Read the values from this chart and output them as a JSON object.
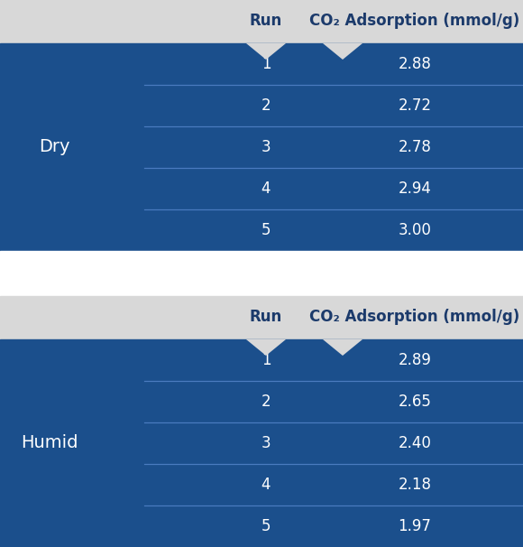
{
  "dry_runs": [
    1,
    2,
    3,
    4,
    5
  ],
  "dry_values": [
    "2.88",
    "2.72",
    "2.78",
    "2.94",
    "3.00"
  ],
  "humid_runs": [
    1,
    2,
    3,
    4,
    5
  ],
  "humid_values": [
    "2.89",
    "2.65",
    "2.40",
    "2.18",
    "1.97"
  ],
  "dry_label": "Dry",
  "humid_label": "Humid",
  "col1_header": "Run",
  "col2_header": "CO₂ Adsorption (mmol/g)",
  "bg_color": "#1b4f8c",
  "header_bg": "#d8d8d8",
  "text_color_white": "#ffffff",
  "text_color_dark": "#1b3a6b",
  "divider_color": "#4a7bbf",
  "gap_color": "#ffffff",
  "outer_bg": "#e8e8e8"
}
